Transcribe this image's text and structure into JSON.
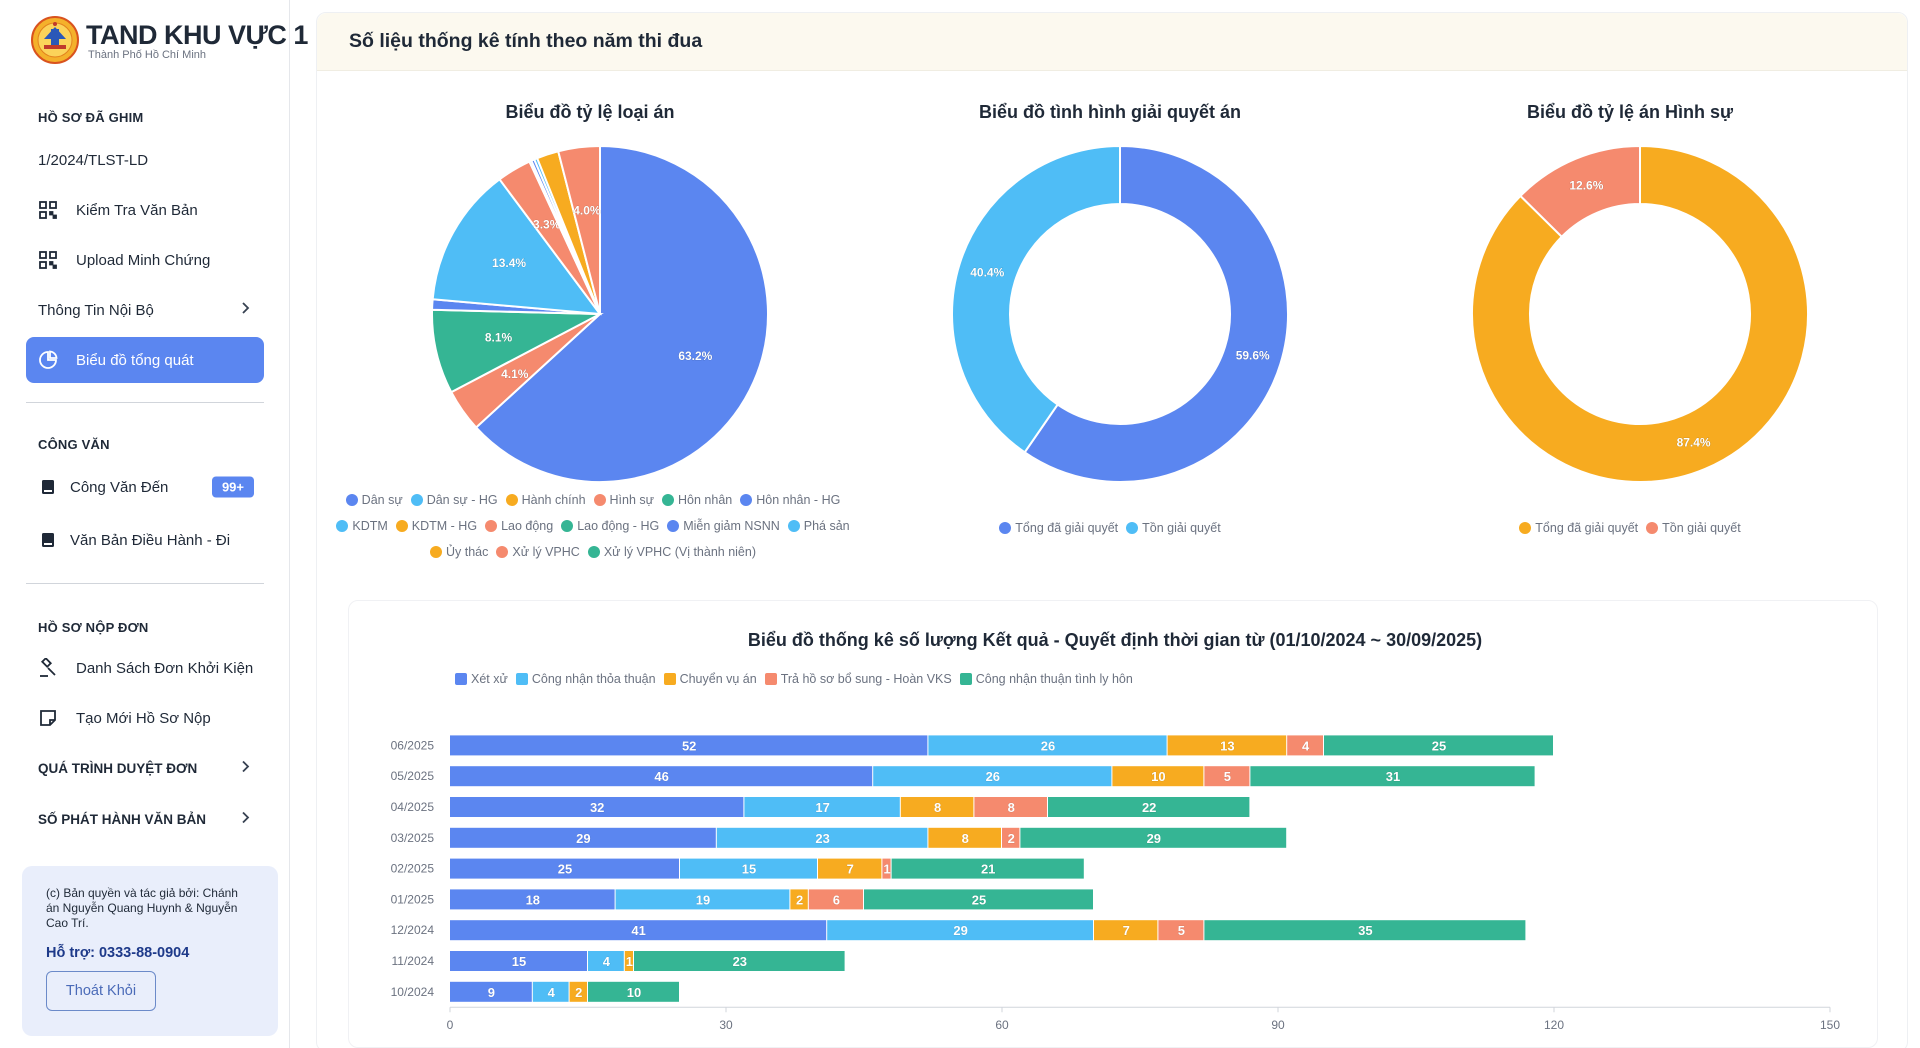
{
  "brand": {
    "title_bold": "TAND KHU VỰC 1",
    "subtitle": "Thành Phố Hồ Chí Minh"
  },
  "sidebar": {
    "pinned_title": "HỒ SƠ ĐÃ GHIM",
    "pinned_case": "1/2024/TLST-LD",
    "items_top": [
      {
        "label": "Kiểm Tra Văn Bản",
        "icon": "qr-icon"
      },
      {
        "label": "Upload Minh Chứng",
        "icon": "qr-icon"
      },
      {
        "label": "Thông Tin Nội Bộ",
        "icon": "chevron-right-icon"
      },
      {
        "label": "Biểu đồ tổng quát",
        "icon": "pie-chart-icon",
        "active": true
      }
    ],
    "cong_van_title": "CÔNG VĂN",
    "cong_van_items": [
      {
        "label": "Công Văn Đến",
        "badge": "99+",
        "icon": "book-icon"
      },
      {
        "label": "Văn Bản Điều Hành - Đi",
        "icon": "book-icon"
      }
    ],
    "ho_so_title": "HỒ SƠ NỘP ĐƠN",
    "ho_so_items": [
      {
        "label": "Danh Sách Đơn Khởi Kiện",
        "icon": "gavel-icon"
      },
      {
        "label": "Tạo Mới Hồ Sơ Nộp",
        "icon": "note-icon"
      }
    ],
    "qua_trinh": "QUÁ TRÌNH DUYỆT ĐƠN",
    "so_phat_hanh": "SỐ PHÁT HÀNH VĂN BẢN",
    "copyright": "(c) Bản quyền và tác giả bởi: Chánh án Nguyễn Quang Huynh & Nguyễn Cao Trí.",
    "support": "Hỗ trợ: 0333-88-0904",
    "logout": "Thoát Khỏi"
  },
  "main": {
    "header": "Số liệu thống kê tính theo năm thi đua"
  },
  "colors": {
    "blue": "#5b86f0",
    "lightblue": "#4fbdf6",
    "orange": "#f7ab20",
    "red": "#f58a6e",
    "green": "#35b594",
    "accent": "#5b86f0"
  },
  "chart_data": [
    {
      "type": "pie",
      "title": "Biểu đồ tỷ lệ loại án",
      "slices": [
        {
          "label": "Dân sự",
          "value": 63.2,
          "color": "#5b86f0",
          "data_label": "63.2%"
        },
        {
          "label": "Dân sự - HG",
          "value": 0.0,
          "color": "#4fbdf6",
          "data_label": ""
        },
        {
          "label": "Hành chính",
          "value": 0.0,
          "color": "#f7ab20",
          "data_label": ""
        },
        {
          "label": "Hình sự",
          "value": 4.1,
          "color": "#f58a6e",
          "data_label": "4.1%"
        },
        {
          "label": "Hôn nhân",
          "value": 8.1,
          "color": "#35b594",
          "data_label": "8.1%"
        },
        {
          "label": "Hôn nhân - HG",
          "value": 1.0,
          "color": "#5b86f0",
          "data_label": ""
        },
        {
          "label": "KDTM",
          "value": 13.4,
          "color": "#4fbdf6",
          "data_label": "13.4%"
        },
        {
          "label": "KDTM - HG",
          "value": 0.0,
          "color": "#f7ab20",
          "data_label": ""
        },
        {
          "label": "Lao động",
          "value": 3.3,
          "color": "#f58a6e",
          "data_label": "3.3%"
        },
        {
          "label": "Lao động - HG",
          "value": 0.2,
          "color": "#35b594",
          "data_label": ""
        },
        {
          "label": "Miễn giảm NSNN",
          "value": 0.3,
          "color": "#5b86f0",
          "data_label": ""
        },
        {
          "label": "Phá sản",
          "value": 0.3,
          "color": "#4fbdf6",
          "data_label": ""
        },
        {
          "label": "Ủy thác",
          "value": 2.1,
          "color": "#f7ab20",
          "data_label": ""
        },
        {
          "label": "Xử lý VPHC",
          "value": 4.0,
          "color": "#f58a6e",
          "data_label": "4.0%"
        },
        {
          "label": "Xử lý VPHC (Vị thành niên)",
          "value": 0.0,
          "color": "#35b594",
          "data_label": ""
        }
      ]
    },
    {
      "type": "pie",
      "title": "Biểu đồ tình hình giải quyết án",
      "slices": [
        {
          "label": "Tổng đã giải quyết",
          "value": 59.6,
          "color": "#5b86f0",
          "data_label": "59.6%"
        },
        {
          "label": "Tồn giải quyết",
          "value": 40.4,
          "color": "#4fbdf6",
          "data_label": "40.4%"
        }
      ]
    },
    {
      "type": "pie",
      "title": "Biểu đồ tỷ lệ án Hình sự",
      "slices": [
        {
          "label": "Tổng đã giải quyết",
          "value": 87.4,
          "color": "#f7ab20",
          "data_label": "87.4%"
        },
        {
          "label": "Tồn giải quyết",
          "value": 12.6,
          "color": "#f58a6e",
          "data_label": "12.6%"
        }
      ]
    },
    {
      "type": "bar",
      "orientation": "horizontal",
      "stacked": true,
      "title": "Biểu đồ thống kê số lượng Kết quả - Quyết định thời gian từ (01/10/2024 ~ 30/09/2025)",
      "categories": [
        "06/2025",
        "05/2025",
        "04/2025",
        "03/2025",
        "02/2025",
        "01/2025",
        "12/2024",
        "11/2024",
        "10/2024"
      ],
      "series": [
        {
          "name": "Xét xử",
          "color": "#5b86f0",
          "values": [
            52,
            46,
            32,
            29,
            25,
            18,
            41,
            15,
            9
          ]
        },
        {
          "name": "Công nhận thỏa thuận",
          "color": "#4fbdf6",
          "values": [
            26,
            26,
            17,
            23,
            15,
            19,
            29,
            4,
            4
          ]
        },
        {
          "name": "Chuyển vụ án",
          "color": "#f7ab20",
          "values": [
            13,
            10,
            8,
            8,
            7,
            2,
            7,
            1,
            2
          ]
        },
        {
          "name": "Trả hồ sơ bổ sung - Hoàn VKS",
          "color": "#f58a6e",
          "values": [
            4,
            5,
            8,
            2,
            1,
            6,
            5,
            0,
            0
          ]
        },
        {
          "name": "Công nhận thuận tình ly hôn",
          "color": "#35b594",
          "values": [
            25,
            31,
            22,
            29,
            21,
            25,
            35,
            23,
            10
          ]
        }
      ],
      "x_ticks": [
        "0",
        "30",
        "60",
        "90",
        "120",
        "150"
      ],
      "xlim": [
        0,
        150
      ]
    }
  ]
}
